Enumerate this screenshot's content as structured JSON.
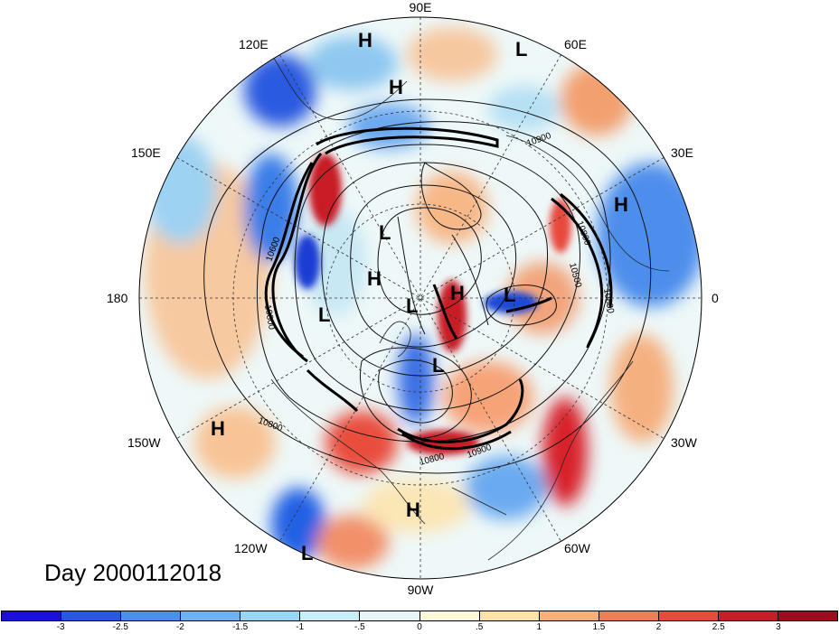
{
  "day_label": "Day 2000112018",
  "longitude_labels": {
    "lon_90e": "90E",
    "lon_60e": "60E",
    "lon_30e": "30E",
    "lon_0": "0",
    "lon_30w": "30W",
    "lon_60w": "60W",
    "lon_90w": "90W",
    "lon_120w": "120W",
    "lon_150w": "150W",
    "lon_180": "180",
    "lon_150e": "150E",
    "lon_120e": "120E"
  },
  "pressure_centers": {
    "h1": "H",
    "h2": "H",
    "h3": "H",
    "h4": "H",
    "h5": "H",
    "h6": "H",
    "h7": "H",
    "l1": "L",
    "l2": "L",
    "l3": "L",
    "l4": "L",
    "l5": "L",
    "l6": "L",
    "l7": "L"
  },
  "contour_labels": {
    "c1": "10900",
    "c2": "10800",
    "c3": "10500",
    "c4": "10800",
    "c5": "10800",
    "c6": "10900",
    "c7": "10800",
    "c8": "10600",
    "c9": "10800"
  },
  "colorbar": {
    "colors": [
      "#1c10d4",
      "#2a56e8",
      "#4a8ef0",
      "#6eb2f4",
      "#98d6f6",
      "#c8ecf8",
      "#e6f6f8",
      "#fdf8d8",
      "#fde2a8",
      "#f8b078",
      "#f07c58",
      "#e84a3c",
      "#c81c28",
      "#a00a1c"
    ],
    "ticks": [
      "-3",
      "-2.5",
      "-2",
      "-1.5",
      "-1",
      "-.5",
      "0",
      ".5",
      "1",
      "1.5",
      "2",
      "2.5",
      "3"
    ]
  }
}
